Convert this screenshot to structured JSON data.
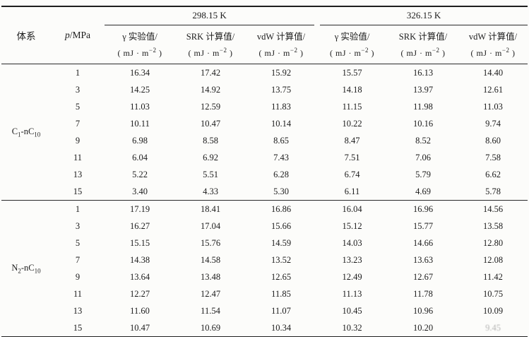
{
  "page": {
    "background_color": "#fcfcfa",
    "rule_color": "#1e1e1e"
  },
  "table": {
    "headers": {
      "system": "体系",
      "pressure": {
        "symbol": "p",
        "rest": "/MPa"
      }
    },
    "temperature_groups": [
      {
        "label": "298.15 K"
      },
      {
        "label": "326.15 K"
      }
    ],
    "measure_columns": [
      {
        "title": "γ 实验值/"
      },
      {
        "title": "SRK 计算值/"
      },
      {
        "title": "vdW 计算值/"
      },
      {
        "title": "γ 实验值/"
      },
      {
        "title": "SRK 计算值/"
      },
      {
        "title": "vdW 计算值/"
      }
    ],
    "unit": {
      "pre": "( mJ · m",
      "sup": "−2",
      "post": " )"
    },
    "systems": [
      {
        "name": {
          "el1": "C",
          "sub1": "1",
          "el2": "-nC",
          "sub2": "10"
        },
        "rows": [
          {
            "p": "1",
            "values": [
              "16.34",
              "17.42",
              "15.92",
              "15.57",
              "16.13",
              "14.40"
            ]
          },
          {
            "p": "3",
            "values": [
              "14.25",
              "14.92",
              "13.75",
              "14.18",
              "13.97",
              "12.61"
            ]
          },
          {
            "p": "5",
            "values": [
              "11.03",
              "12.59",
              "11.83",
              "11.15",
              "11.98",
              "11.03"
            ]
          },
          {
            "p": "7",
            "values": [
              "10.11",
              "10.47",
              "10.14",
              "10.22",
              "10.16",
              "9.74"
            ]
          },
          {
            "p": "9",
            "values": [
              "6.98",
              "8.58",
              "8.65",
              "8.47",
              "8.52",
              "8.60"
            ]
          },
          {
            "p": "11",
            "values": [
              "6.04",
              "6.92",
              "7.43",
              "7.51",
              "7.06",
              "7.58"
            ]
          },
          {
            "p": "13",
            "values": [
              "5.22",
              "5.51",
              "6.28",
              "6.74",
              "5.79",
              "6.62"
            ]
          },
          {
            "p": "15",
            "values": [
              "3.40",
              "4.33",
              "5.30",
              "6.11",
              "4.69",
              "5.78"
            ]
          }
        ]
      },
      {
        "name": {
          "el1": "N",
          "sub1": "2",
          "el2": "-nC",
          "sub2": "10"
        },
        "rows": [
          {
            "p": "1",
            "values": [
              "17.19",
              "18.41",
              "16.86",
              "16.04",
              "16.96",
              "14.56"
            ]
          },
          {
            "p": "3",
            "values": [
              "16.27",
              "17.04",
              "15.66",
              "15.12",
              "15.77",
              "13.58"
            ]
          },
          {
            "p": "5",
            "values": [
              "15.15",
              "15.76",
              "14.59",
              "14.03",
              "14.66",
              "12.80"
            ]
          },
          {
            "p": "7",
            "values": [
              "14.38",
              "14.58",
              "13.52",
              "13.23",
              "13.63",
              "12.08"
            ]
          },
          {
            "p": "9",
            "values": [
              "13.64",
              "13.48",
              "12.65",
              "12.49",
              "12.67",
              "11.42"
            ]
          },
          {
            "p": "11",
            "values": [
              "12.27",
              "12.47",
              "11.85",
              "11.13",
              "11.78",
              "10.75"
            ]
          },
          {
            "p": "13",
            "values": [
              "11.60",
              "11.54",
              "11.07",
              "10.45",
              "10.96",
              "10.09"
            ]
          },
          {
            "p": "15",
            "values": [
              "10.47",
              "10.69",
              "10.34",
              "10.32",
              "10.20",
              "9.45"
            ]
          }
        ]
      }
    ],
    "print_artifact": {
      "note": "last value is faintly printed in the scan",
      "system_index": 1,
      "row_index": 7,
      "value_index": 5
    }
  }
}
